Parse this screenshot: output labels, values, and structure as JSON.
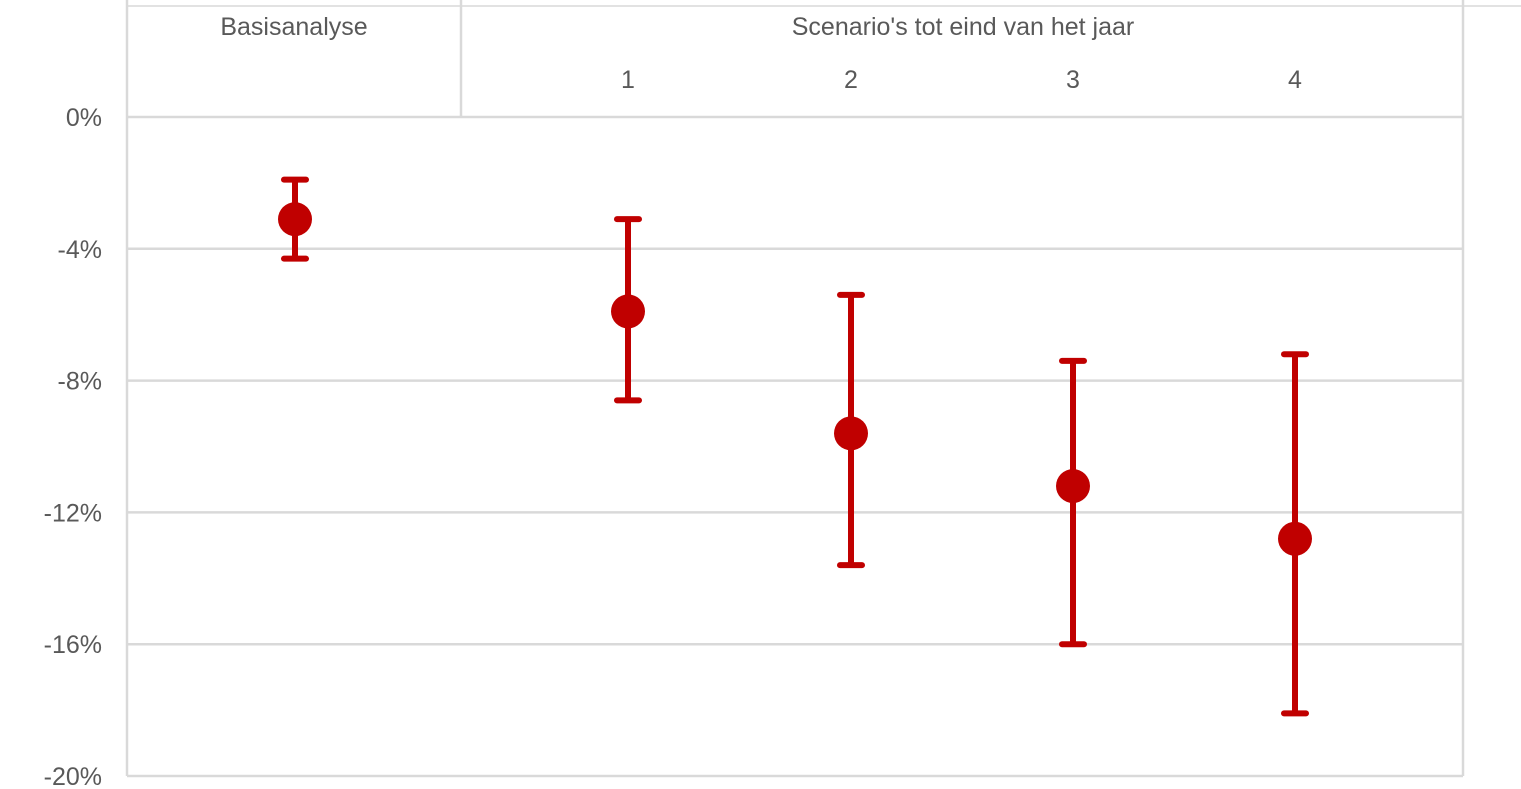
{
  "chart_data": {
    "type": "scatter",
    "groups": [
      {
        "label": "Basisanalyse",
        "categories": [
          ""
        ]
      },
      {
        "label": "Scenario's tot eind van het jaar",
        "categories": [
          "1",
          "2",
          "3",
          "4"
        ]
      }
    ],
    "categories": [
      "",
      "1",
      "2",
      "3",
      "4"
    ],
    "series": [
      {
        "values": [
          -3.1,
          -5.9,
          -9.6,
          -11.2,
          -12.8
        ],
        "error_low": [
          -4.3,
          -8.6,
          -13.6,
          -16.0,
          -18.1
        ],
        "error_high": [
          -1.9,
          -3.1,
          -5.4,
          -7.4,
          -7.2
        ]
      }
    ],
    "yticks": [
      "0%",
      "-4%",
      "-8%",
      "-12%",
      "-16%",
      "-20%"
    ],
    "ylim": [
      -20,
      0
    ],
    "ytick_values": [
      0,
      -4,
      -8,
      -12,
      -16,
      -20
    ],
    "grid": true,
    "color": "#c00000",
    "xlabel": "",
    "ylabel": ""
  }
}
